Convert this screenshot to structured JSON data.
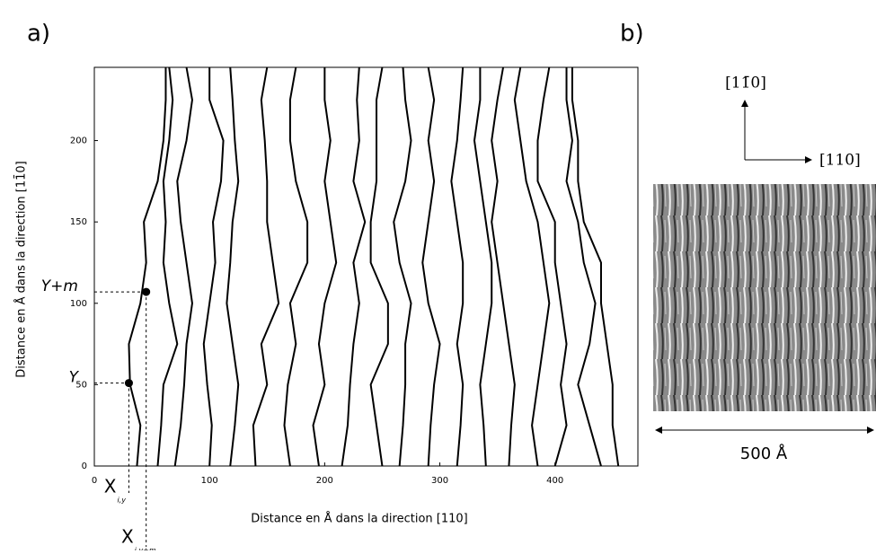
{
  "chart_data": {
    "type": "line",
    "xlabel": "Distance en Å dans la direction [110]",
    "ylabel": "Distance en Å dans la direction [11̄0]",
    "xlim": [
      0,
      472
    ],
    "ylim": [
      0,
      245
    ],
    "xticks": [
      0,
      100,
      200,
      300,
      400
    ],
    "yticks": [
      0,
      50,
      100,
      150,
      200
    ],
    "color": "#000000",
    "y": [
      0,
      25,
      50,
      75,
      100,
      125,
      150,
      175,
      200,
      225,
      245
    ],
    "series": [
      {
        "values": [
          37,
          40,
          31,
          30,
          40,
          45,
          43,
          55,
          60,
          62,
          62
        ]
      },
      {
        "values": [
          55,
          58,
          60,
          72,
          65,
          60,
          62,
          60,
          65,
          68,
          65
        ]
      },
      {
        "values": [
          70,
          75,
          78,
          80,
          85,
          80,
          75,
          72,
          80,
          85,
          80
        ]
      },
      {
        "values": [
          100,
          102,
          98,
          95,
          100,
          105,
          103,
          110,
          112,
          100,
          100
        ]
      },
      {
        "values": [
          118,
          122,
          125,
          120,
          115,
          118,
          120,
          125,
          122,
          120,
          118
        ]
      },
      {
        "values": [
          140,
          138,
          150,
          145,
          160,
          155,
          150,
          150,
          148,
          145,
          150
        ]
      },
      {
        "values": [
          170,
          165,
          168,
          175,
          170,
          185,
          185,
          175,
          170,
          170,
          175
        ]
      },
      {
        "values": [
          195,
          190,
          200,
          195,
          200,
          210,
          205,
          200,
          205,
          200,
          200
        ]
      },
      {
        "values": [
          215,
          220,
          222,
          225,
          230,
          225,
          235,
          225,
          230,
          228,
          230
        ]
      },
      {
        "values": [
          250,
          245,
          240,
          255,
          255,
          240,
          240,
          245,
          245,
          245,
          250
        ]
      },
      {
        "values": [
          265,
          268,
          270,
          270,
          275,
          265,
          260,
          270,
          275,
          270,
          268
        ]
      },
      {
        "values": [
          290,
          292,
          295,
          300,
          290,
          285,
          290,
          295,
          290,
          295,
          290
        ]
      },
      {
        "values": [
          315,
          318,
          320,
          315,
          320,
          320,
          315,
          310,
          315,
          318,
          320
        ]
      },
      {
        "values": [
          340,
          338,
          335,
          340,
          345,
          345,
          340,
          335,
          330,
          335,
          335
        ]
      },
      {
        "values": [
          360,
          362,
          365,
          360,
          355,
          350,
          345,
          350,
          345,
          350,
          355
        ]
      },
      {
        "values": [
          385,
          380,
          385,
          390,
          395,
          390,
          385,
          375,
          370,
          365,
          370
        ]
      },
      {
        "values": [
          400,
          410,
          405,
          410,
          405,
          400,
          400,
          385,
          385,
          390,
          395
        ]
      },
      {
        "values": [
          440,
          430,
          420,
          430,
          435,
          425,
          420,
          410,
          415,
          410,
          410
        ]
      },
      {
        "values": [
          455,
          450,
          450,
          445,
          440,
          440,
          425,
          420,
          420,
          415,
          415
        ]
      }
    ],
    "points": [
      {
        "x": 30,
        "y": 51,
        "label": "Y",
        "xlabel": "X",
        "xsub": "i,y"
      },
      {
        "x": 45,
        "y": 107,
        "label": "Y+m",
        "xlabel": "X",
        "xsub": "i,y+m"
      }
    ],
    "panel_a": "a)",
    "panel_b": "b)",
    "dir_up": "[11̄0]",
    "dir_right": "[110]",
    "scale_label": "500 Å"
  }
}
